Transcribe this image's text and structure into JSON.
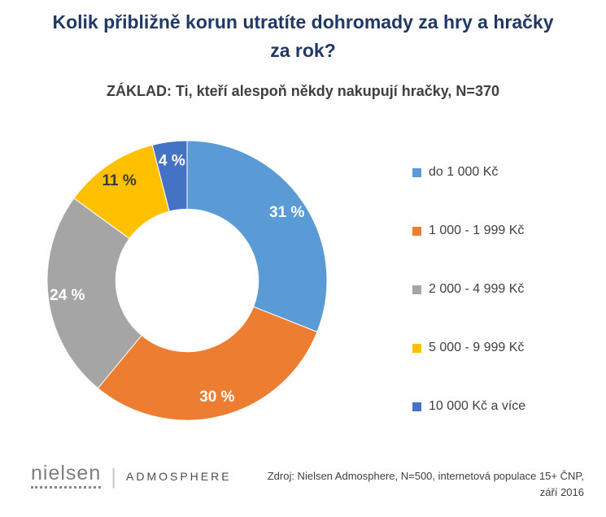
{
  "title": "Kolik přibližně korun utratíte dohromady za hry a hračky za rok?",
  "subtitle": "ZÁKLAD: Ti, kteří alespoň někdy nakupují hračky, N=370",
  "chart_data": {
    "type": "pie",
    "subtype": "donut",
    "title": "Kolik přibližně korun utratíte dohromady za hry a hračky za rok?",
    "base_note": "ZÁKLAD: Ti, kteří alespoň někdy nakupují hračky, N=370",
    "categories": [
      "do 1 000 Kč",
      "1 000 - 1 999 Kč",
      "2 000 - 4 999 Kč",
      "5 000 - 9 999 Kč",
      "10 000 Kč a více"
    ],
    "values": [
      31,
      30,
      24,
      11,
      4
    ],
    "data_labels": [
      "31 %",
      "30 %",
      "24 %",
      "11 %",
      "4 %"
    ],
    "colors": [
      "#5B9BD5",
      "#ED7D31",
      "#A5A5A5",
      "#FFC000",
      "#4472C4"
    ],
    "label_colors": [
      "#FFFFFF",
      "#FFFFFF",
      "#FFFFFF",
      "#3B3B3B",
      "#FFFFFF"
    ],
    "unit": "%",
    "legend_position": "right",
    "start_angle_deg": 0,
    "direction": "clockwise",
    "inner_radius_ratio": 0.51
  },
  "footer": {
    "logo_nielsen": "nielsen",
    "logo_separator": "|",
    "logo_admosphere": "ADMOSPHERE",
    "source_line1": "Zdroj: Nielsen Admosphere, N=500, internetová populace 15+ ČNP,",
    "source_line2": "září 2016"
  }
}
